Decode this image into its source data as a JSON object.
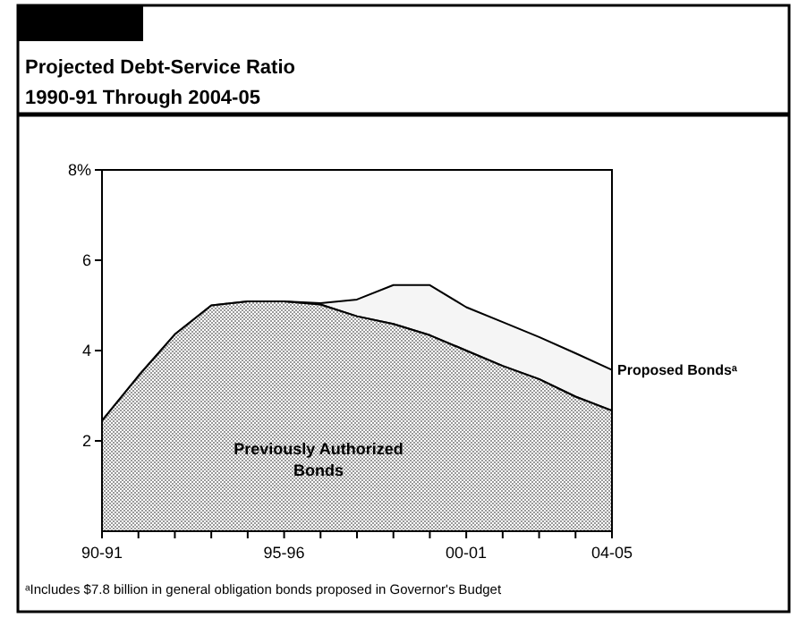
{
  "chart_data": {
    "type": "area",
    "title": "Projected Debt-Service Ratio",
    "subtitle": "1990-91 Through 2004-05",
    "stacked": true,
    "grid": false,
    "categories": [
      "90-91",
      null,
      null,
      null,
      null,
      "95-96",
      null,
      null,
      null,
      null,
      "00-01",
      null,
      null,
      null,
      "04-05"
    ],
    "ylim": [
      0,
      8
    ],
    "yticks": [
      2,
      4,
      6,
      {
        "value": 8,
        "label": "8%"
      }
    ],
    "series": [
      {
        "name": "Previously Authorized Bonds",
        "color": "#9a9a9a",
        "values": [
          2.45,
          3.44,
          4.36,
          5.0,
          5.09,
          5.09,
          5.02,
          4.76,
          4.59,
          4.34,
          4.0,
          3.66,
          3.37,
          2.98,
          2.67
        ]
      },
      {
        "name": "Proposed Bondsᵃ",
        "color": "#000000",
        "values": [
          0,
          0,
          0,
          0,
          0,
          0,
          0.03,
          0.37,
          0.86,
          1.11,
          0.96,
          0.97,
          0.93,
          0.96,
          0.9
        ]
      }
    ],
    "annotations": [
      "ᵃIncludes $7.8 billion in general obligation bonds proposed in Governor's Budget"
    ]
  }
}
